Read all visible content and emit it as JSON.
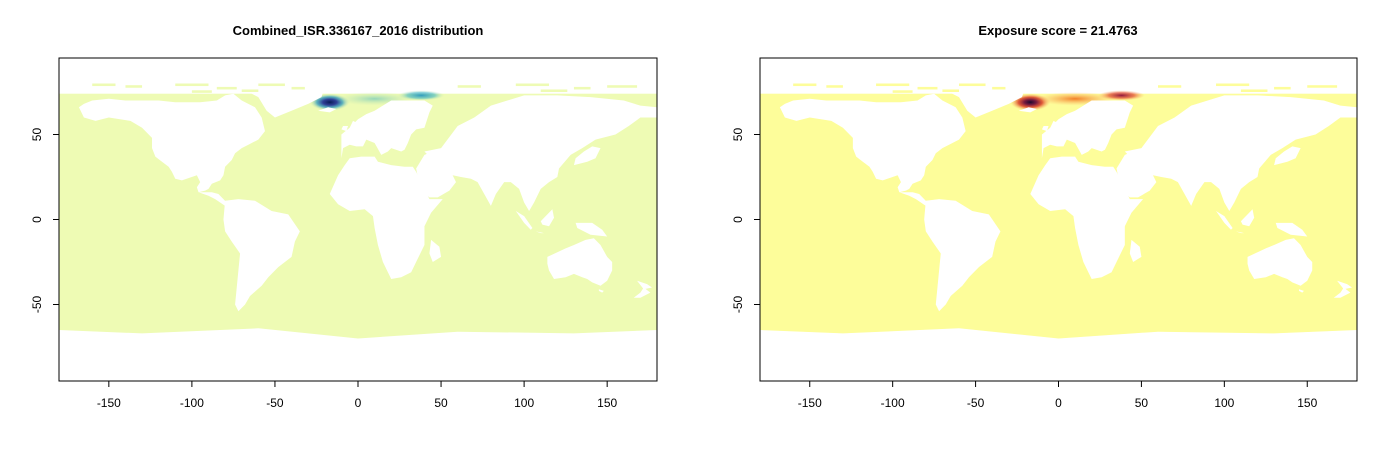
{
  "chart_data": [
    {
      "type": "heatmap",
      "title": "Combined_ISR.336167_2016 distribution",
      "xlabel": "",
      "ylabel": "",
      "xlim": [
        -180,
        180
      ],
      "ylim": [
        -95,
        95
      ],
      "xticks": [
        -150,
        -100,
        -50,
        0,
        50,
        100,
        150
      ],
      "yticks": [
        -50,
        0,
        50
      ],
      "background_color": "#eefbb4",
      "hotspots": [
        {
          "lon": -17,
          "lat": 69,
          "intensity": 1.0
        },
        {
          "lon": 10,
          "lat": 71,
          "intensity": 0.45
        },
        {
          "lon": 38,
          "lat": 73,
          "intensity": 0.75
        }
      ],
      "palette": [
        "#eefbb4",
        "#7fcdbb",
        "#1d91c0",
        "#253494",
        "#081d58"
      ]
    },
    {
      "type": "heatmap",
      "title": "Exposure score = 21.4763",
      "xlabel": "",
      "ylabel": "",
      "xlim": [
        -180,
        180
      ],
      "ylim": [
        -95,
        95
      ],
      "xticks": [
        -150,
        -100,
        -50,
        0,
        50,
        100,
        150
      ],
      "yticks": [
        -50,
        0,
        50
      ],
      "background_color": "#fdfd9a",
      "hotspots": [
        {
          "lon": -17,
          "lat": 69,
          "intensity": 1.0
        },
        {
          "lon": 10,
          "lat": 71,
          "intensity": 0.5
        },
        {
          "lon": 38,
          "lat": 73,
          "intensity": 0.8
        }
      ],
      "palette": [
        "#fdfd9a",
        "#fdae61",
        "#e34a00",
        "#a50026",
        "#2d0a3a"
      ]
    }
  ]
}
